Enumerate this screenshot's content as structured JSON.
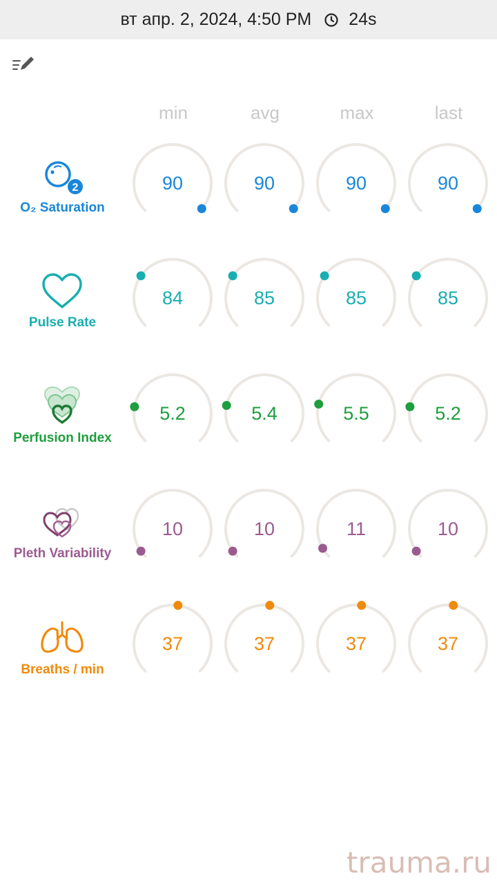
{
  "status": {
    "date_time": "вт апр. 2, 2024, 4:50 PM",
    "duration": "24s"
  },
  "columns": [
    "min",
    "avg",
    "max",
    "last"
  ],
  "metrics": [
    {
      "label": "O₂ Saturation",
      "icon": "o2-saturation-icon",
      "color": "#1a86d9",
      "values": [
        "90",
        "90",
        "90",
        "90"
      ],
      "dot_angles": [
        131,
        131,
        131,
        131
      ]
    },
    {
      "label": "Pulse Rate",
      "icon": "heart-icon",
      "color": "#19aeb0",
      "values": [
        "84",
        "85",
        "85",
        "85"
      ],
      "dot_angles": [
        -55,
        -55,
        -55,
        -55
      ]
    },
    {
      "label": "Perfusion Index",
      "icon": "perfusion-index-icon",
      "color": "#1e9e3e",
      "values": [
        "5.2",
        "5.4",
        "5.5",
        "5.2"
      ],
      "dot_angles": [
        -80,
        -78,
        -76,
        -80
      ]
    },
    {
      "label": "Pleth Variability",
      "icon": "pleth-variability-icon",
      "color": "#9b5a8f",
      "values": [
        "10",
        "10",
        "11",
        "10"
      ],
      "dot_angles": [
        -125,
        -125,
        -120,
        -125
      ]
    },
    {
      "label": "Breaths / min",
      "icon": "lungs-icon",
      "color": "#f08a0c",
      "values": [
        "37",
        "37",
        "37",
        "37"
      ],
      "dot_angles": [
        8,
        8,
        8,
        8
      ]
    }
  ],
  "watermark": "trauma.ru"
}
